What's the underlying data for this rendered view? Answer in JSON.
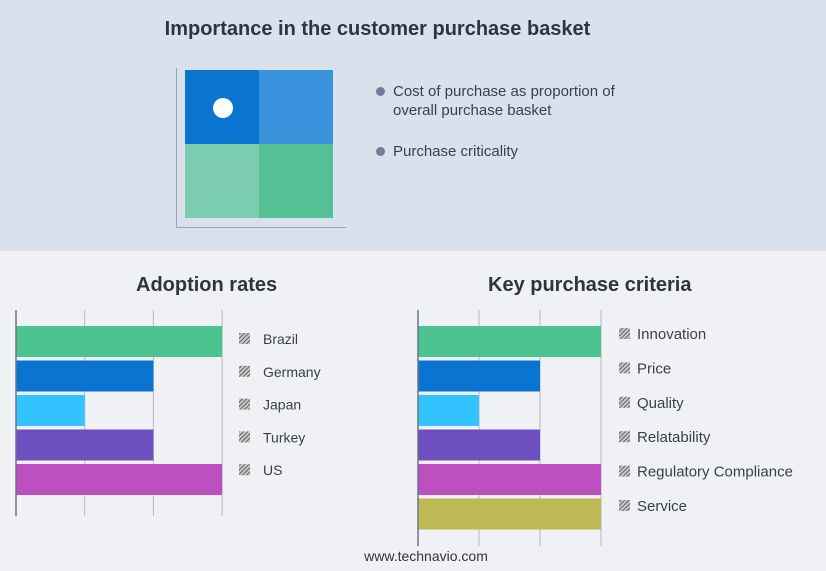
{
  "top": {
    "title": "Importance in the customer purchase basket",
    "legend": [
      {
        "label": "Cost of purchase as proportion of overall purchase basket"
      },
      {
        "label": "Purchase criticality"
      }
    ],
    "matrix_colors": [
      "#0a74d1",
      "#3a94dd",
      "#7ccdb0",
      "#55c096"
    ],
    "highlight": {
      "row": "high",
      "col": "low"
    }
  },
  "site": "www.technavio.com",
  "chart_data": [
    {
      "type": "bar",
      "orientation": "horizontal",
      "title": "Adoption rates",
      "categories": [
        "Brazil",
        "Germany",
        "Japan",
        "Turkey",
        "US"
      ],
      "values": [
        3,
        2,
        1,
        2,
        3
      ],
      "colors": [
        "#4cc492",
        "#0a74d1",
        "#33c3ff",
        "#6e4fc0",
        "#be4fc0"
      ],
      "xlim": [
        0,
        3
      ],
      "grid": true,
      "legend": "right"
    },
    {
      "type": "bar",
      "orientation": "horizontal",
      "title": "Key purchase criteria",
      "categories": [
        "Innovation",
        "Price",
        "Quality",
        "Relatability",
        "Regulatory Compliance",
        "Service"
      ],
      "values": [
        3,
        2,
        1,
        2,
        3,
        3
      ],
      "colors": [
        "#4cc492",
        "#0a74d1",
        "#33c3ff",
        "#6e4fc0",
        "#be4fc0",
        "#bdb955"
      ],
      "xlim": [
        0,
        3
      ],
      "grid": true,
      "legend": "right"
    }
  ]
}
